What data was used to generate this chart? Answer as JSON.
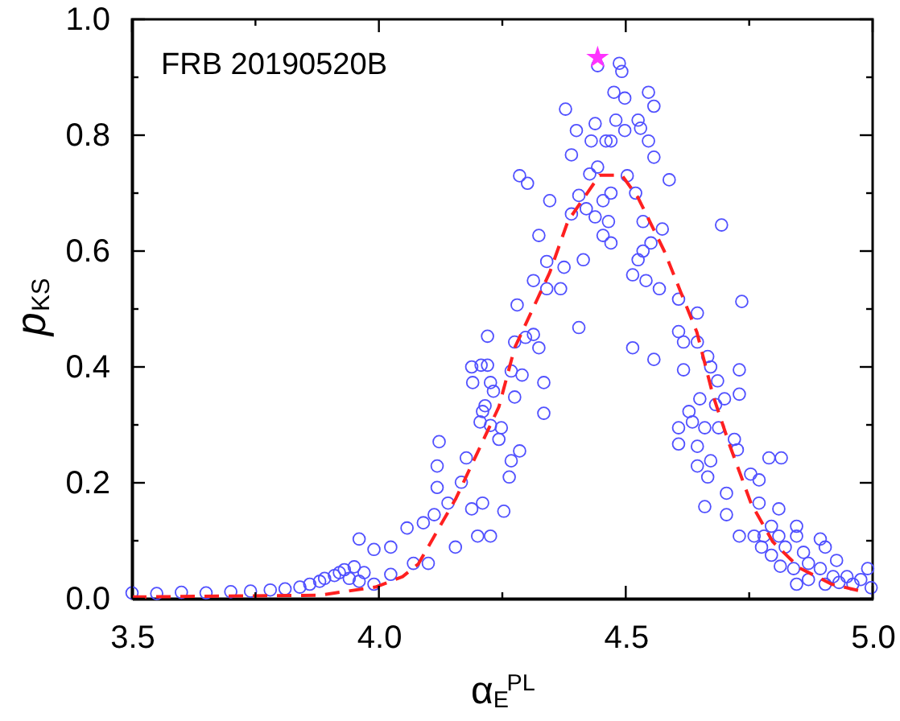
{
  "chart_data": {
    "type": "scatter",
    "xlabel": "α$_{E}$$^{PL}$",
    "ylabel": "p$_{KS}$",
    "annotations": [
      "FRB 20190520B"
    ],
    "xlim": [
      3.5,
      5.0
    ],
    "ylim": [
      0,
      1.0
    ],
    "xticks": [
      3.5,
      {
        "value": 3.75,
        "label": null
      },
      {
        "value": 4.0,
        "label": "4.0"
      },
      {
        "value": 4.25,
        "label": null
      },
      4.5,
      {
        "value": 4.75,
        "label": null
      },
      {
        "value": 5.0,
        "label": "5.0"
      }
    ],
    "yticks": [
      {
        "value": 0,
        "label": "0.0"
      },
      {
        "value": 0.1,
        "label": null
      },
      0.2,
      {
        "value": 0.3,
        "label": null
      },
      0.4,
      {
        "value": 0.5,
        "label": null
      },
      0.6,
      {
        "value": 0.7,
        "label": null
      },
      0.8,
      {
        "value": 0.9,
        "label": null
      },
      {
        "value": 1.0,
        "label": "1.0"
      }
    ],
    "grid": false,
    "series": [
      {
        "marker": "circle",
        "color": "#5050ff",
        "x": [
          3.5,
          3.55,
          3.6,
          3.65,
          3.7,
          3.74,
          3.78,
          3.81,
          3.84,
          3.86,
          3.88,
          3.89,
          3.91,
          3.92,
          3.93,
          3.94,
          3.95,
          3.96,
          3.97,
          3.99,
          3.96,
          3.99,
          4.024,
          4.057,
          4.09,
          4.112,
          4.122,
          4.118,
          4.118,
          4.14,
          4.155,
          4.177,
          4.167,
          4.188,
          4.2,
          4.21,
          4.188,
          4.19,
          4.207,
          4.22,
          4.205,
          4.21,
          4.226,
          4.232,
          4.07,
          4.1,
          4.024,
          4.22,
          4.215,
          4.226,
          4.248,
          4.243,
          4.253,
          4.226,
          4.264,
          4.268,
          4.285,
          4.275,
          4.268,
          4.29,
          4.275,
          4.28,
          4.297,
          4.313,
          4.324,
          4.334,
          4.334,
          4.313,
          4.324,
          4.285,
          4.301,
          4.34,
          4.346,
          4.375,
          4.368,
          4.34,
          4.378,
          4.39,
          4.4,
          4.405,
          4.414,
          4.39,
          4.405,
          4.42,
          4.427,
          4.43,
          4.438,
          4.443,
          4.443,
          4.438,
          4.454,
          4.46,
          4.47,
          4.465,
          4.454,
          4.47,
          4.47,
          4.476,
          4.48,
          4.487,
          4.492,
          4.498,
          4.498,
          4.503,
          4.52,
          4.525,
          4.53,
          4.546,
          4.557,
          4.546,
          4.557,
          4.514,
          4.514,
          4.525,
          4.535,
          4.535,
          4.541,
          4.551,
          4.574,
          4.568,
          4.557,
          4.588,
          4.607,
          4.607,
          4.617,
          4.617,
          4.607,
          4.607,
          4.628,
          4.635,
          4.645,
          4.645,
          4.65,
          4.645,
          4.645,
          4.66,
          4.666,
          4.672,
          4.66,
          4.666,
          4.672,
          4.682,
          4.688,
          4.694,
          4.7,
          4.686,
          4.704,
          4.704,
          4.72,
          4.726,
          4.73,
          4.73,
          4.735,
          4.73,
          4.753,
          4.76,
          4.77,
          4.77,
          4.775,
          4.78,
          4.79,
          4.795,
          4.795,
          4.81,
          4.81,
          4.815,
          4.813,
          4.823,
          4.84,
          4.846,
          4.846,
          4.846,
          4.86,
          4.87,
          4.87,
          4.894,
          4.894,
          4.904,
          4.904,
          4.92,
          4.927,
          4.932,
          4.948,
          4.96,
          4.976,
          4.99,
          4.997
        ],
        "values": [
          0.01,
          0.009,
          0.011,
          0.01,
          0.012,
          0.013,
          0.015,
          0.017,
          0.02,
          0.025,
          0.03,
          0.035,
          0.04,
          0.045,
          0.05,
          0.035,
          0.055,
          0.03,
          0.045,
          0.025,
          0.103,
          0.085,
          0.089,
          0.122,
          0.131,
          0.145,
          0.271,
          0.229,
          0.192,
          0.165,
          0.089,
          0.243,
          0.201,
          0.155,
          0.108,
          0.165,
          0.4,
          0.373,
          0.403,
          0.453,
          0.305,
          0.323,
          0.373,
          0.358,
          0.061,
          0.061,
          0.042,
          0.403,
          0.333,
          0.299,
          0.295,
          0.275,
          0.151,
          0.108,
          0.21,
          0.238,
          0.255,
          0.348,
          0.393,
          0.386,
          0.443,
          0.507,
          0.451,
          0.456,
          0.433,
          0.373,
          0.32,
          0.549,
          0.627,
          0.73,
          0.717,
          0.582,
          0.687,
          0.572,
          0.535,
          0.535,
          0.845,
          0.766,
          0.808,
          0.468,
          0.585,
          0.664,
          0.696,
          0.673,
          0.733,
          0.79,
          0.82,
          0.92,
          0.745,
          0.659,
          0.687,
          0.79,
          0.79,
          0.651,
          0.627,
          0.614,
          0.7,
          0.874,
          0.826,
          0.924,
          0.91,
          0.864,
          0.808,
          0.73,
          0.7,
          0.826,
          0.812,
          0.874,
          0.85,
          0.79,
          0.762,
          0.433,
          0.559,
          0.585,
          0.6,
          0.651,
          0.549,
          0.614,
          0.638,
          0.535,
          0.413,
          0.723,
          0.517,
          0.461,
          0.443,
          0.395,
          0.295,
          0.267,
          0.323,
          0.305,
          0.493,
          0.443,
          0.345,
          0.263,
          0.229,
          0.295,
          0.418,
          0.4,
          0.159,
          0.21,
          0.238,
          0.335,
          0.295,
          0.645,
          0.345,
          0.376,
          0.182,
          0.145,
          0.275,
          0.257,
          0.395,
          0.353,
          0.513,
          0.108,
          0.215,
          0.108,
          0.205,
          0.165,
          0.089,
          0.108,
          0.243,
          0.125,
          0.075,
          0.155,
          0.108,
          0.243,
          0.056,
          0.089,
          0.052,
          0.125,
          0.108,
          0.025,
          0.08,
          0.061,
          0.033,
          0.103,
          0.052,
          0.089,
          0.025,
          0.038,
          0.066,
          0.028,
          0.038,
          0.025,
          0.033,
          0.052,
          0.019
        ]
      },
      {
        "type": "line",
        "marker": "none",
        "line_style": "dashed",
        "color": "#ff2020",
        "x": [
          3.5,
          3.88,
          3.993,
          4.048,
          4.08,
          4.156,
          4.243,
          4.275,
          4.346,
          4.383,
          4.447,
          4.492,
          4.525,
          4.578,
          4.611,
          4.644,
          4.677,
          4.71,
          4.754,
          4.798,
          4.852,
          4.917,
          4.987
        ],
        "values": [
          0.003,
          0.006,
          0.02,
          0.038,
          0.06,
          0.173,
          0.331,
          0.433,
          0.563,
          0.652,
          0.731,
          0.731,
          0.692,
          0.6,
          0.53,
          0.46,
          0.35,
          0.266,
          0.164,
          0.098,
          0.053,
          0.025,
          0.011
        ]
      },
      {
        "type": "scatter",
        "marker": "star",
        "color": "#ff33ff",
        "x": [
          4.443
        ],
        "values": [
          0.934
        ]
      }
    ]
  }
}
